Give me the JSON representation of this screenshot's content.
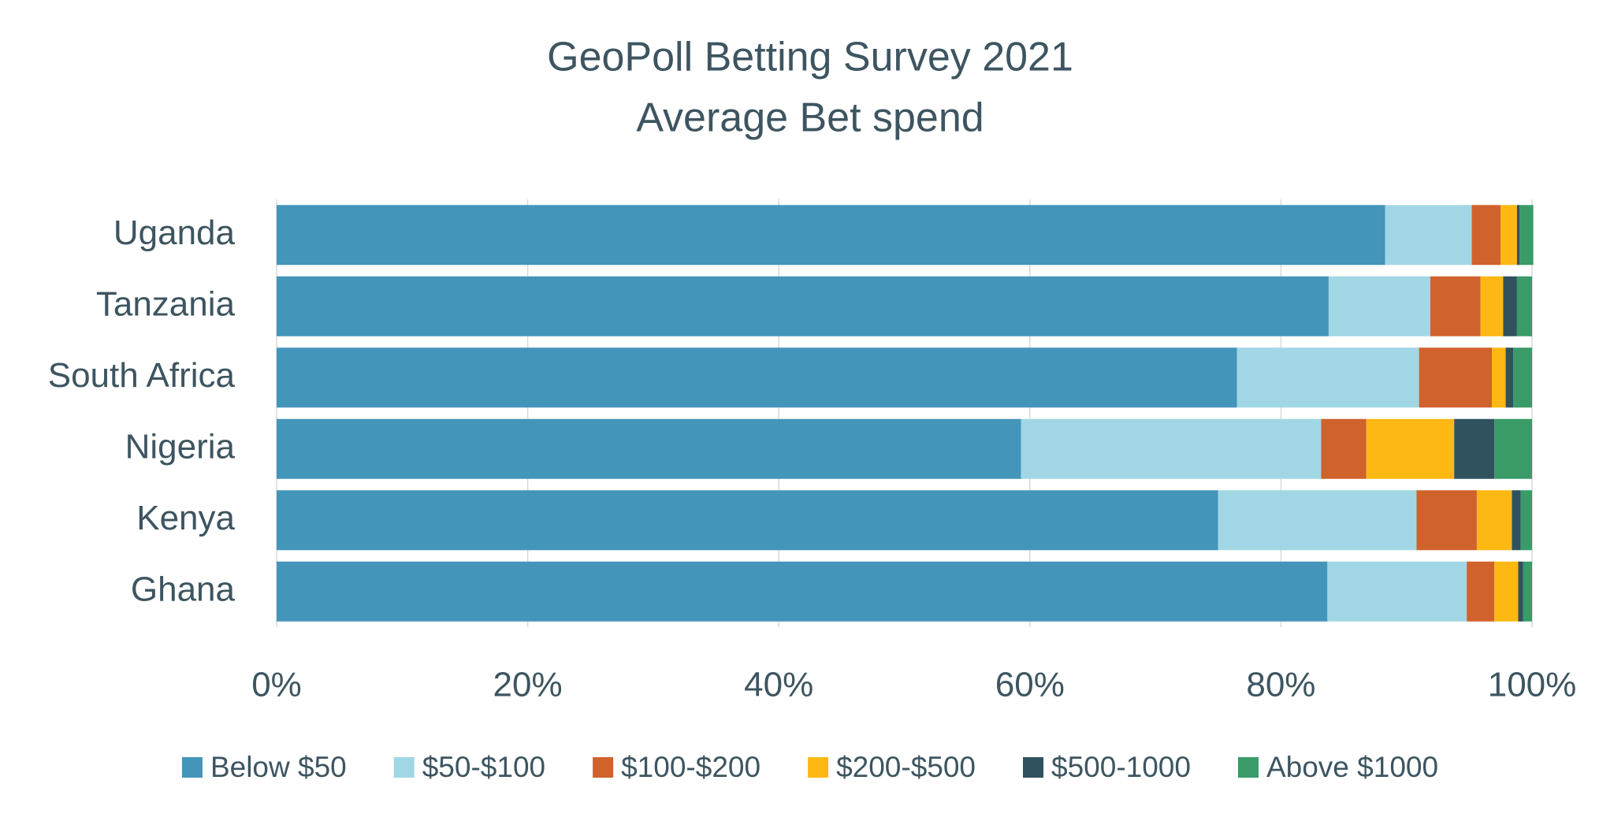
{
  "chart_data": {
    "type": "stacked-barh",
    "title": "GeoPoll Betting Survey 2021",
    "subtitle": "Average Bet spend",
    "categories": [
      "Uganda",
      "Tanzania",
      "South Africa",
      "Nigeria",
      "Kenya",
      "Ghana"
    ],
    "series": [
      {
        "name": "Below $50",
        "color": "#4495ba",
        "values": [
          88.3,
          83.8,
          76.5,
          59.3,
          75.0,
          83.7
        ]
      },
      {
        "name": "$50-$100",
        "color": "#a1d7e4",
        "values": [
          6.9,
          8.1,
          14.5,
          23.9,
          15.8,
          11.1
        ]
      },
      {
        "name": "$100-$200",
        "color": "#d0622c",
        "values": [
          2.3,
          4.0,
          5.8,
          3.6,
          4.8,
          2.2
        ]
      },
      {
        "name": "$200-$500",
        "color": "#fdb813",
        "values": [
          1.3,
          1.8,
          1.1,
          7.0,
          2.8,
          1.9
        ]
      },
      {
        "name": "$500-1000",
        "color": "#2f525e",
        "values": [
          0.2,
          1.1,
          0.6,
          3.2,
          0.7,
          0.4
        ]
      },
      {
        "name": "Above $1000",
        "color": "#3a9a68",
        "values": [
          1.1,
          1.2,
          1.5,
          3.0,
          0.9,
          0.7
        ]
      }
    ],
    "xlim": [
      0,
      100
    ],
    "xticks": [
      {
        "value": 0,
        "label": "0%"
      },
      {
        "value": 20,
        "label": "20%"
      },
      {
        "value": 40,
        "label": "40%"
      },
      {
        "value": 60,
        "label": "60%"
      },
      {
        "value": 80,
        "label": "80%"
      },
      {
        "value": 100,
        "label": "100%"
      }
    ],
    "grid": true,
    "legend": "bottom"
  }
}
